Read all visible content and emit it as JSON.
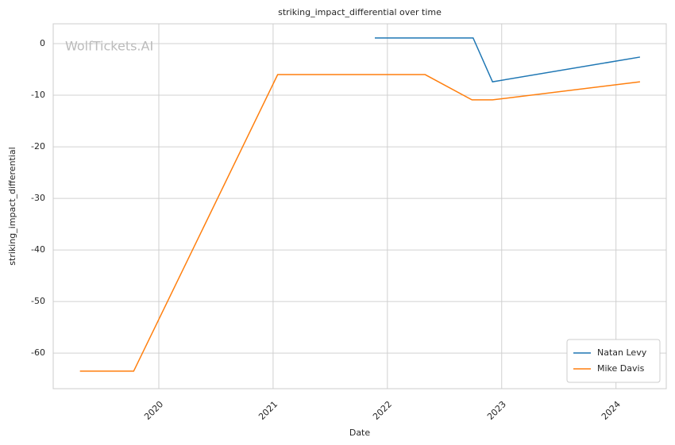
{
  "chart_data": {
    "type": "line",
    "title": "striking_impact_differential over time",
    "x_label": "Date",
    "y_label": "striking_impact_differential",
    "watermark": "WolfTickets.AI",
    "series": [
      {
        "name": "Natan Levy",
        "color": "#1f77b4",
        "x": [
          2021.89,
          2022.75,
          2022.92,
          2024.21
        ],
        "values": [
          1.1,
          1.1,
          -7.4,
          -2.6
        ]
      },
      {
        "name": "Mike Davis",
        "color": "#ff7f0e",
        "x": [
          2019.31,
          2019.78,
          2021.04,
          2022.33,
          2022.74,
          2022.92,
          2024.21
        ],
        "values": [
          -63.5,
          -63.5,
          -6,
          -6,
          -10.9,
          -10.9,
          -7.4
        ]
      }
    ],
    "xlim": [
      2019.076,
      2024.44
    ],
    "xticks": [
      2020,
      2021,
      2022,
      2023,
      2024
    ],
    "ylim": [
      -66.9,
      3.85
    ],
    "yticks": [
      -60,
      -50,
      -40,
      -30,
      -20,
      -10,
      0
    ],
    "grid": true,
    "legend": "lower right"
  }
}
